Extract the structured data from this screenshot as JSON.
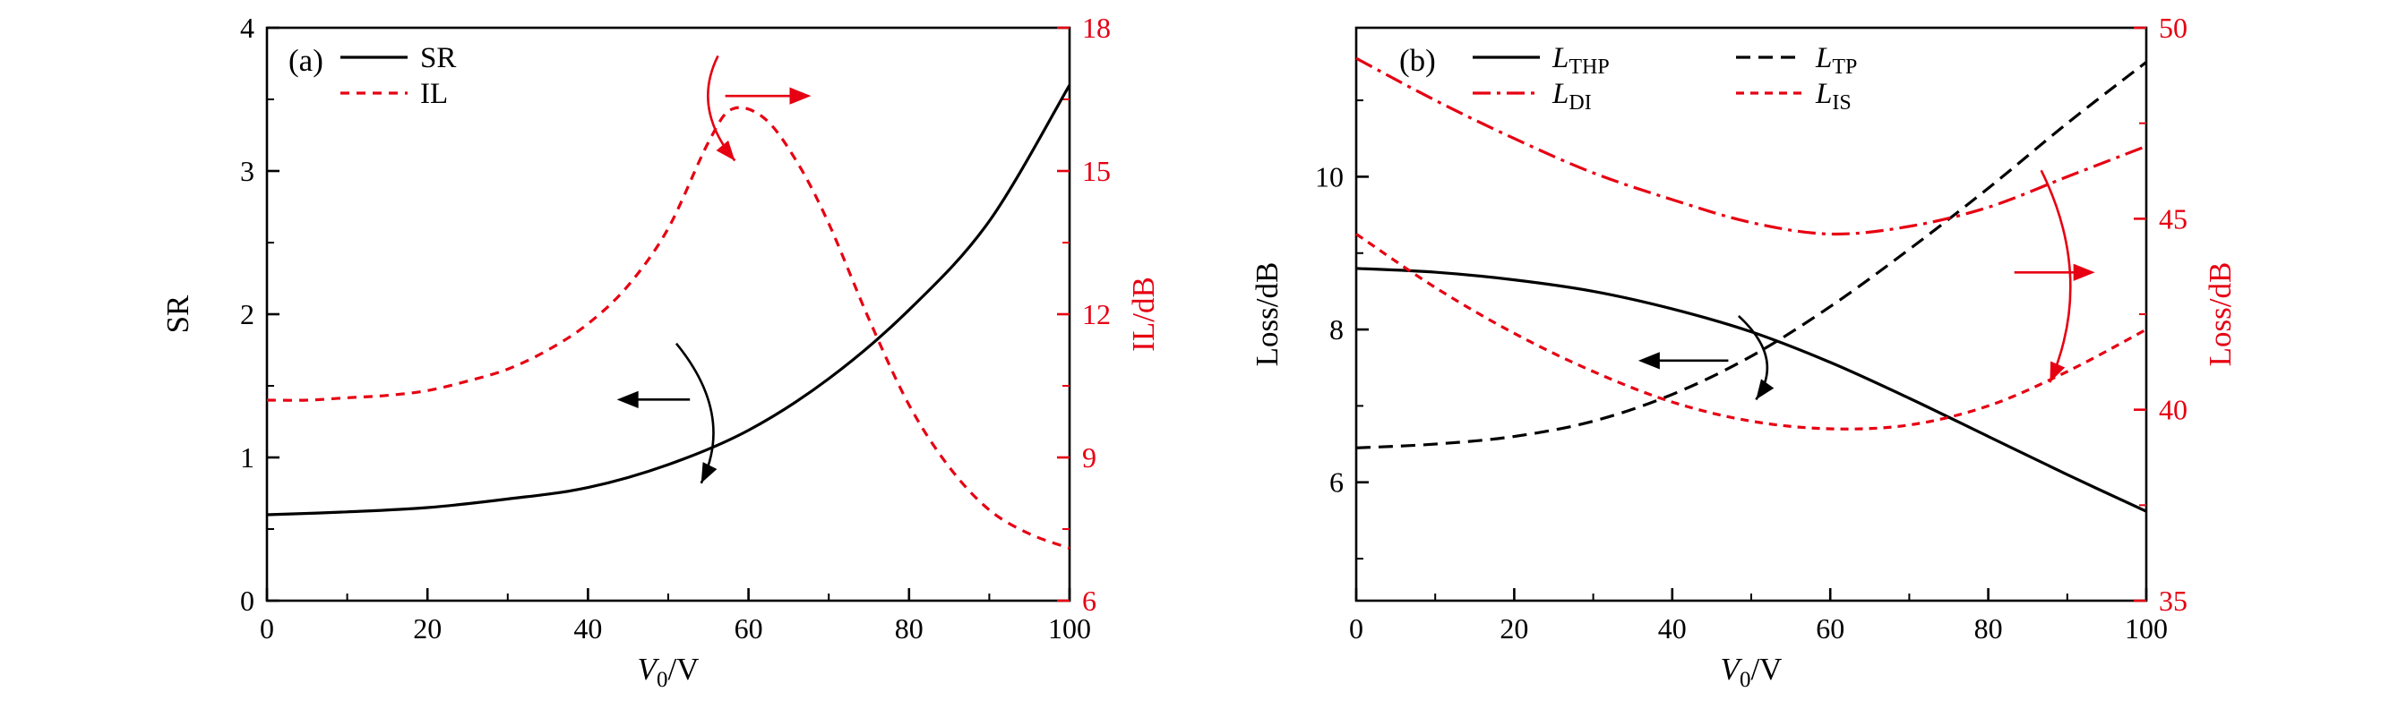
{
  "figure": {
    "background": "#ffffff",
    "axis_color": "#000000",
    "accent_red": "#e60012"
  },
  "chart_data": [
    {
      "type": "line",
      "panel_label": "(a)",
      "x_axis": {
        "label_parts": [
          {
            "t": "V",
            "i": true
          },
          {
            "t": "0",
            "sub": true
          },
          {
            "t": "/V"
          }
        ],
        "ticks": [
          0,
          20,
          40,
          60,
          80,
          100
        ],
        "minor": [
          10,
          30,
          50,
          70,
          90
        ],
        "lim": [
          0,
          100
        ]
      },
      "left_axis": {
        "label_parts": [
          {
            "t": "SR"
          }
        ],
        "ticks": [
          0,
          1,
          2,
          3,
          4
        ],
        "minor": [
          0.5,
          1.5,
          2.5,
          3.5
        ],
        "lim": [
          0,
          4
        ],
        "color": "#000000"
      },
      "right_axis": {
        "label_parts": [
          {
            "t": "IL/dB"
          }
        ],
        "ticks": [
          6,
          9,
          12,
          15,
          18
        ],
        "minor": [
          7.5,
          10.5,
          13.5,
          16.5
        ],
        "lim": [
          6,
          18
        ],
        "color": "#e60012"
      },
      "series": [
        {
          "name": "SR",
          "name_parts": [
            {
              "t": "SR"
            }
          ],
          "axis": "left",
          "color": "#000000",
          "dash": "",
          "x": [
            0,
            10,
            20,
            30,
            40,
            50,
            60,
            70,
            80,
            90,
            100
          ],
          "y": [
            0.6,
            0.62,
            0.65,
            0.71,
            0.79,
            0.95,
            1.19,
            1.55,
            2.03,
            2.65,
            3.6
          ]
        },
        {
          "name": "IL",
          "name_parts": [
            {
              "t": "IL"
            }
          ],
          "axis": "right",
          "color": "#e60012",
          "dash": "10 8",
          "x": [
            0,
            5,
            10,
            15,
            20,
            25,
            30,
            35,
            40,
            45,
            50,
            55,
            58,
            62,
            66,
            70,
            75,
            80,
            85,
            90,
            95,
            100
          ],
          "y": [
            10.2,
            10.2,
            10.25,
            10.3,
            10.4,
            10.6,
            10.85,
            11.25,
            11.8,
            12.6,
            13.8,
            15.6,
            16.3,
            16.1,
            15.2,
            13.9,
            11.9,
            10.1,
            8.8,
            7.9,
            7.4,
            7.1
          ]
        }
      ],
      "legend": [
        {
          "series": 0,
          "col": 0,
          "row": 0
        },
        {
          "series": 1,
          "col": 0,
          "row": 1
        }
      ],
      "annotations": [
        {
          "kind": "axis-pointer",
          "axis": "left",
          "color": "#000000",
          "arrow": [
            0.527,
            0.649,
            0.436,
            0.649
          ],
          "arc": [
            0.51,
            0.551,
            0.583,
            0.676,
            0.541,
            0.795
          ]
        },
        {
          "kind": "axis-pointer",
          "axis": "right",
          "color": "#e60012",
          "arrow": [
            0.571,
            0.119,
            0.678,
            0.119
          ],
          "arc": [
            0.562,
            0.049,
            0.529,
            0.141,
            0.583,
            0.232
          ]
        }
      ]
    },
    {
      "type": "line",
      "panel_label": "(b)",
      "x_axis": {
        "label_parts": [
          {
            "t": "V",
            "i": true
          },
          {
            "t": "0",
            "sub": true
          },
          {
            "t": "/V"
          }
        ],
        "ticks": [
          0,
          20,
          40,
          60,
          80,
          100
        ],
        "minor": [
          10,
          30,
          50,
          70,
          90
        ],
        "lim": [
          0,
          100
        ]
      },
      "left_axis": {
        "label_parts": [
          {
            "t": "Loss/dB"
          }
        ],
        "ticks": [
          6,
          8,
          10
        ],
        "minor": [
          5,
          7,
          9,
          11
        ],
        "lim": [
          4.45,
          11.95
        ],
        "color": "#000000"
      },
      "right_axis": {
        "label_parts": [
          {
            "t": "Loss/dB"
          }
        ],
        "ticks": [
          35,
          40,
          45,
          50
        ],
        "minor": [
          37.5,
          42.5,
          47.5
        ],
        "lim": [
          35,
          50
        ],
        "color": "#e60012"
      },
      "series": [
        {
          "name": "L_THP",
          "name_parts": [
            {
              "t": "L",
              "i": true
            },
            {
              "t": "THP",
              "sub": true
            }
          ],
          "axis": "left",
          "color": "#000000",
          "dash": "",
          "x": [
            0,
            10,
            20,
            30,
            40,
            50,
            60,
            70,
            80,
            90,
            100
          ],
          "y": [
            8.8,
            8.75,
            8.65,
            8.5,
            8.27,
            7.97,
            7.57,
            7.1,
            6.6,
            6.1,
            5.62
          ]
        },
        {
          "name": "L_TP",
          "name_parts": [
            {
              "t": "L",
              "i": true
            },
            {
              "t": "TP",
              "sub": true
            }
          ],
          "axis": "left",
          "color": "#000000",
          "dash": "16 9",
          "x": [
            0,
            10,
            20,
            30,
            40,
            50,
            60,
            70,
            80,
            90,
            100
          ],
          "y": [
            6.45,
            6.5,
            6.6,
            6.8,
            7.15,
            7.65,
            8.3,
            9.05,
            9.85,
            10.7,
            11.5
          ]
        },
        {
          "name": "L_DI",
          "name_parts": [
            {
              "t": "L",
              "i": true
            },
            {
              "t": "DI",
              "sub": true
            }
          ],
          "axis": "right",
          "color": "#e60012",
          "dash": "20 7 4 7",
          "x": [
            0,
            10,
            20,
            30,
            40,
            50,
            60,
            70,
            80,
            90,
            100
          ],
          "y": [
            49.2,
            48.1,
            47.1,
            46.2,
            45.5,
            44.9,
            44.6,
            44.8,
            45.3,
            46.1,
            46.9
          ]
        },
        {
          "name": "L_IS",
          "name_parts": [
            {
              "t": "L",
              "i": true
            },
            {
              "t": "IS",
              "sub": true
            }
          ],
          "axis": "right",
          "color": "#e60012",
          "dash": "9 7",
          "x": [
            0,
            10,
            20,
            30,
            40,
            50,
            60,
            70,
            80,
            90,
            100
          ],
          "y": [
            44.6,
            43.2,
            42.0,
            41.0,
            40.2,
            39.7,
            39.5,
            39.6,
            40.1,
            41.0,
            42.1
          ]
        }
      ],
      "legend": [
        {
          "series": 0,
          "col": 0,
          "row": 0
        },
        {
          "series": 1,
          "col": 1,
          "row": 0
        },
        {
          "series": 2,
          "col": 0,
          "row": 1
        },
        {
          "series": 3,
          "col": 1,
          "row": 1
        }
      ],
      "annotations": [
        {
          "kind": "axis-pointer",
          "axis": "left",
          "color": "#000000",
          "arrow": [
            0.471,
            0.581,
            0.357,
            0.581
          ],
          "arc": [
            0.484,
            0.503,
            0.543,
            0.578,
            0.506,
            0.649
          ]
        },
        {
          "kind": "axis-pointer",
          "axis": "right",
          "color": "#e60012",
          "arrow": [
            0.833,
            0.427,
            0.935,
            0.427
          ],
          "arc": [
            0.867,
            0.249,
            0.935,
            0.438,
            0.878,
            0.619
          ]
        }
      ]
    }
  ]
}
